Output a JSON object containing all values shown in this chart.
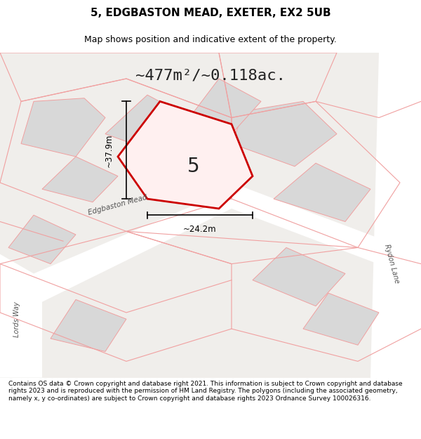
{
  "title": "5, EDGBASTON MEAD, EXETER, EX2 5UB",
  "subtitle": "Map shows position and indicative extent of the property.",
  "area_text": "~477m²/~0.118ac.",
  "dim_width": "~24.2m",
  "dim_height": "~37.9m",
  "plot_label": "5",
  "footer_text": "Contains OS data © Crown copyright and database right 2021. This information is subject to Crown copyright and database rights 2023 and is reproduced with the permission of HM Land Registry. The polygons (including the associated geometry, namely x, y co-ordinates) are subject to Crown copyright and database rights 2023 Ordnance Survey 100026316.",
  "background_color": "#f5f5f5",
  "map_background": "#f8f8f8",
  "road_color": "#ffffff",
  "building_color": "#e8e8e8",
  "plot_line_color": "#cc0000",
  "other_line_color": "#f0a0a0",
  "dim_line_color": "#000000",
  "label_road": "Edgbaston Mead",
  "label_road2": "Lords Way",
  "label_road3": "Rydon Lane"
}
